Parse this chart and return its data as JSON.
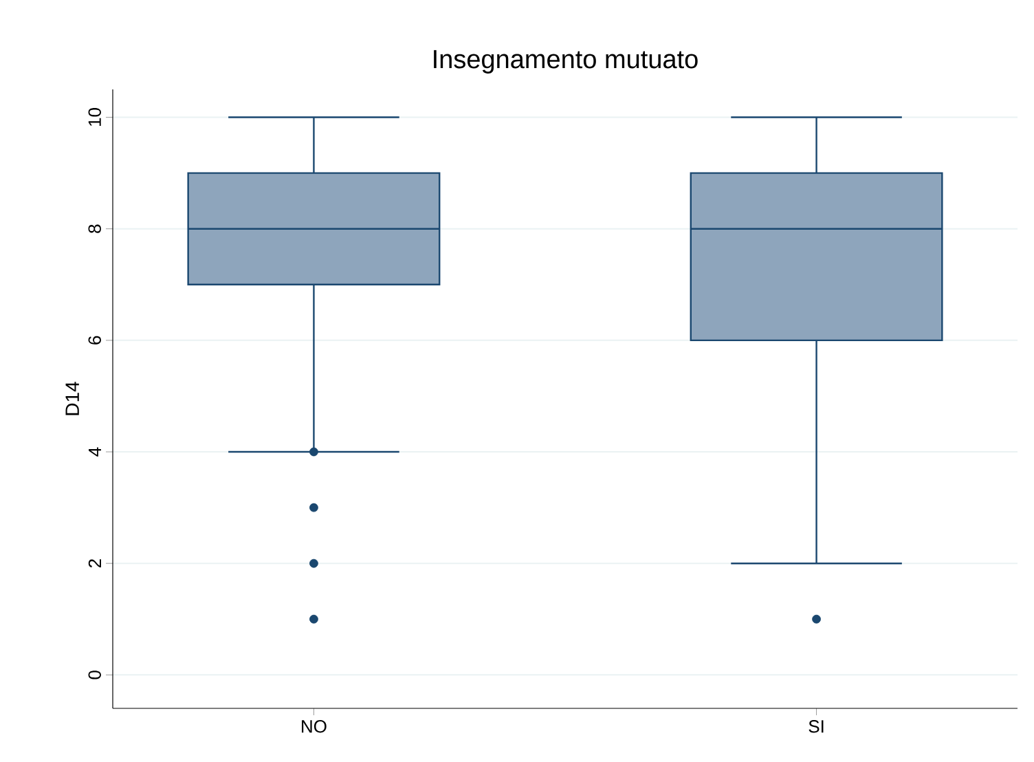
{
  "chart_data": {
    "type": "box",
    "title": "Insegnamento mutuato",
    "ylabel": "D14",
    "categories": [
      "NO",
      "SI"
    ],
    "boxes": [
      {
        "low": 4,
        "q1": 7,
        "median": 8,
        "q3": 9,
        "high": 10,
        "outliers": [
          4,
          3,
          2,
          1
        ]
      },
      {
        "low": 2,
        "q1": 6,
        "median": 8,
        "q3": 9,
        "high": 10,
        "outliers": [
          1
        ]
      }
    ],
    "color": "#8ea5bc",
    "ylim": [
      -0.6,
      10.5
    ],
    "yticks": [
      0,
      2,
      4,
      6,
      8,
      10
    ],
    "grid": "y"
  }
}
